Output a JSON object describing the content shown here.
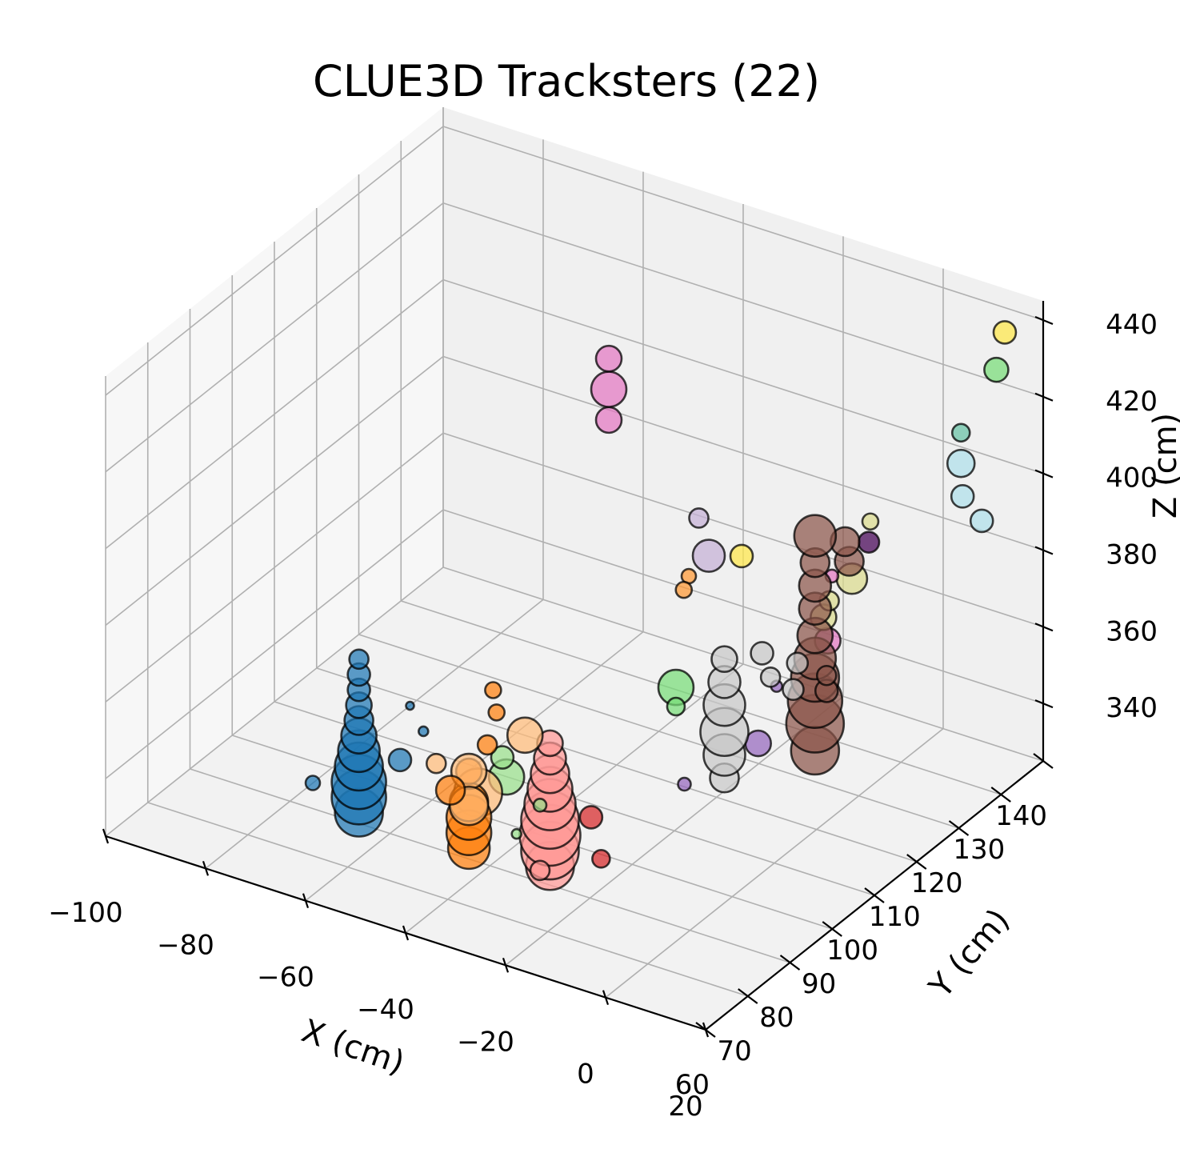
{
  "chart_data": {
    "type": "scatter",
    "projection": "3d",
    "title": "CLUE3D Tracksters (22)",
    "xlabel": "X (cm)",
    "ylabel": "Y (cm)",
    "zlabel": "Z (cm)",
    "xlim": [
      -100,
      20
    ],
    "ylim": [
      60,
      140
    ],
    "zlim": [
      325,
      445
    ],
    "xticks": [
      -100,
      -80,
      -60,
      -40,
      -20,
      0,
      20
    ],
    "xtick_labels": [
      "−100",
      "−80",
      "−60",
      "−40",
      "−20",
      "0",
      "20"
    ],
    "yticks": [
      60,
      70,
      80,
      90,
      100,
      110,
      120,
      130,
      140
    ],
    "ytick_labels": [
      "60",
      "70",
      "80",
      "90",
      "100",
      "110",
      "120",
      "130",
      "140"
    ],
    "zticks": [
      340,
      360,
      380,
      400,
      420,
      440
    ],
    "ztick_labels": [
      "340",
      "360",
      "380",
      "400",
      "420",
      "440"
    ],
    "grid": true,
    "legend": "none",
    "marker_edge_color": "#000000",
    "series": [
      {
        "color": "#1f77b4",
        "points": [
          [
            -62,
            75,
            334,
            30
          ],
          [
            -62,
            75,
            338,
            34
          ],
          [
            -62,
            75,
            342,
            34
          ],
          [
            -62,
            75,
            346,
            30
          ],
          [
            -62,
            75,
            350,
            26
          ],
          [
            -62,
            75,
            354,
            22
          ],
          [
            -62,
            75,
            358,
            18
          ],
          [
            -62,
            75,
            362,
            16
          ],
          [
            -62,
            75,
            366,
            14
          ],
          [
            -62,
            75,
            370,
            14
          ],
          [
            -62,
            75,
            374,
            12
          ],
          [
            -58,
            80,
            345,
            14
          ],
          [
            -67,
            70,
            344,
            9
          ],
          [
            -56,
            80,
            360,
            5
          ],
          [
            -55,
            82,
            352,
            6
          ]
        ]
      },
      {
        "color": "#ff7f0e",
        "points": [
          [
            -40,
            75,
            334,
            26
          ],
          [
            -40,
            75,
            338,
            28
          ],
          [
            -40,
            75,
            342,
            28
          ],
          [
            -40,
            75,
            346,
            24
          ],
          [
            -42,
            73,
            350,
            18
          ],
          [
            -40,
            75,
            354,
            16
          ],
          [
            -38,
            77,
            360,
            12
          ],
          [
            -37,
            78,
            368,
            10
          ],
          [
            -36,
            76,
            376,
            10
          ]
        ]
      },
      {
        "color": "#ffbb78",
        "points": [
          [
            -39,
            76,
            348,
            30
          ],
          [
            -40,
            75,
            354,
            22
          ],
          [
            -44,
            72,
            357,
            12
          ],
          [
            -33,
            80,
            362,
            22
          ],
          [
            -40,
            75,
            345,
            24
          ]
        ]
      },
      {
        "color": "#98df8a",
        "points": [
          [
            -35,
            78,
            352,
            22
          ],
          [
            -35,
            77,
            358,
            14
          ],
          [
            -30,
            80,
            345,
            8
          ],
          [
            -33,
            78,
            338,
            6
          ]
        ]
      },
      {
        "color": "#ff9896",
        "points": [
          [
            -28,
            80,
            330,
            30
          ],
          [
            -28,
            80,
            334,
            36
          ],
          [
            -28,
            80,
            338,
            38
          ],
          [
            -28,
            80,
            342,
            36
          ],
          [
            -28,
            80,
            346,
            32
          ],
          [
            -28,
            80,
            350,
            28
          ],
          [
            -28,
            80,
            354,
            24
          ],
          [
            -28,
            80,
            358,
            20
          ],
          [
            -28,
            80,
            362,
            16
          ],
          [
            -30,
            80,
            328,
            12
          ]
        ]
      },
      {
        "color": "#d62728",
        "points": [
          [
            -24,
            85,
            340,
            14
          ],
          [
            -22,
            85,
            330,
            11
          ]
        ]
      },
      {
        "color": "#c7c7c7",
        "points": [
          [
            -10,
            100,
            343,
            18
          ],
          [
            -10,
            100,
            349,
            26
          ],
          [
            -10,
            100,
            355,
            30
          ],
          [
            -10,
            100,
            362,
            26
          ],
          [
            -10,
            100,
            368,
            20
          ],
          [
            -10,
            100,
            374,
            16
          ],
          [
            -5,
            103,
            375,
            14
          ],
          [
            -5,
            105,
            367,
            12
          ],
          [
            -3,
            108,
            362,
            13
          ],
          [
            -3,
            109,
            368,
            13
          ]
        ]
      },
      {
        "color": "#8c564b",
        "points": [
          [
            -2,
            112,
            343,
            30
          ],
          [
            -2,
            112,
            350,
            36
          ],
          [
            -2,
            112,
            356,
            34
          ],
          [
            -2,
            112,
            362,
            30
          ],
          [
            -2,
            112,
            367,
            26
          ],
          [
            -2,
            112,
            373,
            22
          ],
          [
            -2,
            112,
            380,
            20
          ],
          [
            -2,
            112,
            386,
            20
          ],
          [
            -2,
            112,
            392,
            18
          ],
          [
            -2,
            112,
            399,
            26
          ],
          [
            2,
            110,
            362,
            14
          ],
          [
            2,
            110,
            366,
            12
          ],
          [
            4,
            112,
            400,
            18
          ],
          [
            4,
            113,
            394,
            18
          ]
        ]
      },
      {
        "color": "#e377c2",
        "points": [
          [
            -50,
            120,
            402,
            16
          ],
          [
            -50,
            120,
            410,
            22
          ],
          [
            -50,
            120,
            418,
            16
          ],
          [
            -2,
            115,
            369,
            16
          ],
          [
            -2,
            116,
            385,
            8
          ]
        ]
      },
      {
        "color": "#c5b0d5",
        "points": [
          [
            -30,
            120,
            375,
            20
          ],
          [
            -32,
            120,
            384,
            12
          ]
        ]
      },
      {
        "color": "#9467bd",
        "points": [
          [
            -18,
            100,
            338,
            8
          ],
          [
            -10,
            108,
            345,
            16
          ],
          [
            -8,
            110,
            359,
            7
          ]
        ]
      },
      {
        "color": "#440154",
        "points": [
          [
            2,
            120,
            392,
            13
          ]
        ]
      },
      {
        "color": "#dbdb8d",
        "points": [
          [
            -2,
            114,
            376,
            16
          ],
          [
            2,
            116,
            386,
            19
          ],
          [
            0,
            113,
            382,
            12
          ],
          [
            4,
            118,
            400,
            10
          ]
        ]
      },
      {
        "color": "#ffe74a",
        "points": [
          [
            -15,
            110,
            390,
            14
          ],
          [
            14,
            138,
            436,
            14
          ]
        ]
      },
      {
        "color": "#77dd77",
        "points": [
          [
            -18,
            98,
            365,
            22
          ],
          [
            -18,
            98,
            360,
            11
          ],
          [
            14,
            136,
            428,
            15
          ]
        ]
      },
      {
        "color": "#66c2a5",
        "points": [
          [
            12,
            130,
            416,
            11
          ]
        ]
      },
      {
        "color": "#aedfea",
        "points": [
          [
            12,
            130,
            408,
            17
          ],
          [
            14,
            128,
            402,
            14
          ],
          [
            17,
            129,
            396,
            14
          ]
        ]
      },
      {
        "color": "#ff9933",
        "points": [
          [
            -35,
            120,
            364,
            10
          ],
          [
            -34,
            120,
            368,
            9
          ]
        ]
      }
    ]
  }
}
